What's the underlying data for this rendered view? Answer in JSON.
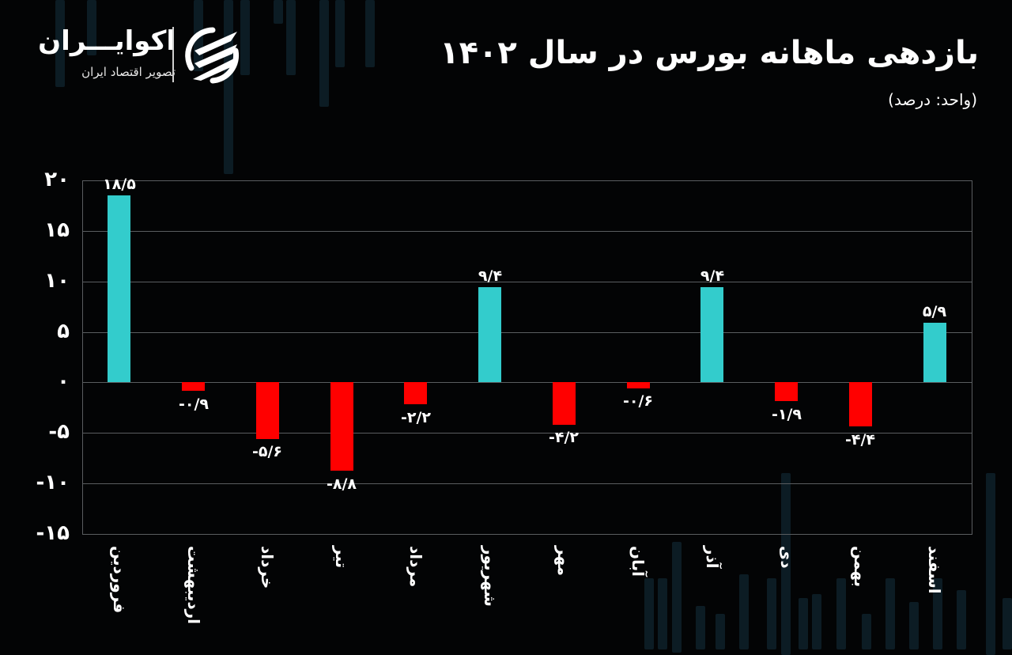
{
  "header": {
    "title": "بازدهی ماهانه بورس در سال ۱۴۰۲",
    "subtitle": "(واحد: درصد)"
  },
  "logo": {
    "name": "اکوایـــران",
    "tagline": "تصویر اقتصاد ایران"
  },
  "colors": {
    "positive": "#33cccc",
    "negative": "#ff0000",
    "background": "#030405",
    "grid": "#5a5d60",
    "text": "#ffffff"
  },
  "axis": {
    "ticks": [
      {
        "value": 20,
        "label": "۲۰"
      },
      {
        "value": 15,
        "label": "۱۵"
      },
      {
        "value": 10,
        "label": "۱۰"
      },
      {
        "value": 5,
        "label": "۵"
      },
      {
        "value": 0,
        "label": "۰"
      },
      {
        "value": -5,
        "label": "-۵"
      },
      {
        "value": -10,
        "label": "-۱۰"
      },
      {
        "value": -15,
        "label": "-۱۵"
      }
    ]
  },
  "bars": [
    {
      "month": "فروردین",
      "value": 18.5,
      "label": "۱۸/۵"
    },
    {
      "month": "اردیبهشت",
      "value": -0.9,
      "label": "-۰/۹"
    },
    {
      "month": "خرداد",
      "value": -5.6,
      "label": "-۵/۶"
    },
    {
      "month": "تیر",
      "value": -8.8,
      "label": "-۸/۸"
    },
    {
      "month": "مرداد",
      "value": -2.2,
      "label": "-۲/۲"
    },
    {
      "month": "شهریور",
      "value": 9.4,
      "label": "۹/۴"
    },
    {
      "month": "مهر",
      "value": -4.2,
      "label": "-۴/۲"
    },
    {
      "month": "آبان",
      "value": -0.6,
      "label": "-۰/۶"
    },
    {
      "month": "آذر",
      "value": 9.4,
      "label": "۹/۴"
    },
    {
      "month": "دی",
      "value": -1.9,
      "label": "-۱/۹"
    },
    {
      "month": "بهمن",
      "value": -4.4,
      "label": "-۴/۴"
    },
    {
      "month": "اسفند",
      "value": 5.9,
      "label": "۵/۹"
    }
  ],
  "chart_data": {
    "type": "bar",
    "title": "بازدهی ماهانه بورس در سال ۱۴۰۲",
    "subtitle": "(واحد: درصد)",
    "xlabel": "",
    "ylabel": "",
    "categories": [
      "فروردین",
      "اردیبهشت",
      "خرداد",
      "تیر",
      "مرداد",
      "شهریور",
      "مهر",
      "آبان",
      "آذر",
      "دی",
      "بهمن",
      "اسفند"
    ],
    "values": [
      18.5,
      -0.9,
      -5.6,
      -8.8,
      -2.2,
      9.4,
      -4.2,
      -0.6,
      9.4,
      -1.9,
      -4.4,
      5.9
    ],
    "ylim": [
      -15,
      20
    ],
    "yticks": [
      20,
      15,
      10,
      5,
      0,
      -5,
      -10,
      -15
    ],
    "grid": true,
    "legend": "none",
    "color_rule": {
      "positive": "#33cccc",
      "negative": "#ff0000"
    },
    "data_labels": true
  }
}
